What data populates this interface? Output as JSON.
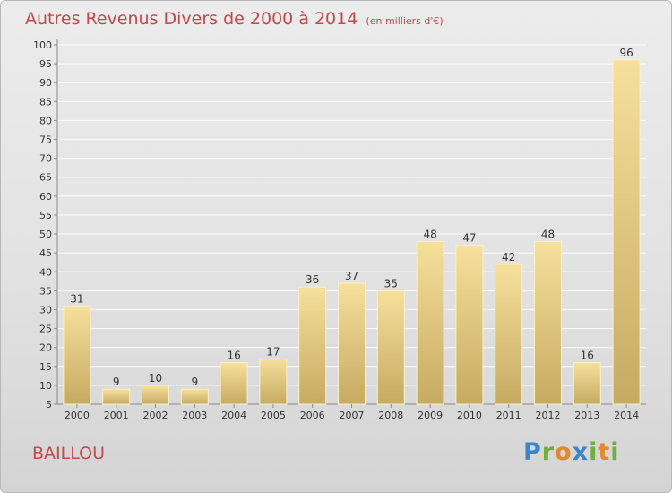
{
  "header": {
    "title": "Autres Revenus Divers de 2000 à 2014",
    "unit": "(en milliers d'€)"
  },
  "footer": {
    "locality": "BAILLOU",
    "logo_text": "Proxiti",
    "logo_letters": [
      "P",
      "r",
      "o",
      "x",
      "i",
      "t",
      "i"
    ]
  },
  "colors": {
    "title": "#c4474a",
    "bar_top": "#f6e09c",
    "bar_bottom": "#c6aa62",
    "grid": "#ffffff",
    "axis": "#888888"
  },
  "chart_data": {
    "type": "bar",
    "title": "Autres Revenus Divers de 2000 à 2014",
    "xlabel": "",
    "ylabel": "",
    "ylim": [
      5,
      100
    ],
    "yticks": [
      5,
      10,
      15,
      20,
      25,
      30,
      35,
      40,
      45,
      50,
      55,
      60,
      65,
      70,
      75,
      80,
      85,
      90,
      95,
      100
    ],
    "grid": true,
    "categories": [
      "2000",
      "2001",
      "2002",
      "2003",
      "2004",
      "2005",
      "2006",
      "2007",
      "2008",
      "2009",
      "2010",
      "2011",
      "2012",
      "2013",
      "2014"
    ],
    "values": [
      31,
      9,
      10,
      9,
      16,
      17,
      36,
      37,
      35,
      48,
      47,
      42,
      48,
      16,
      96
    ]
  }
}
